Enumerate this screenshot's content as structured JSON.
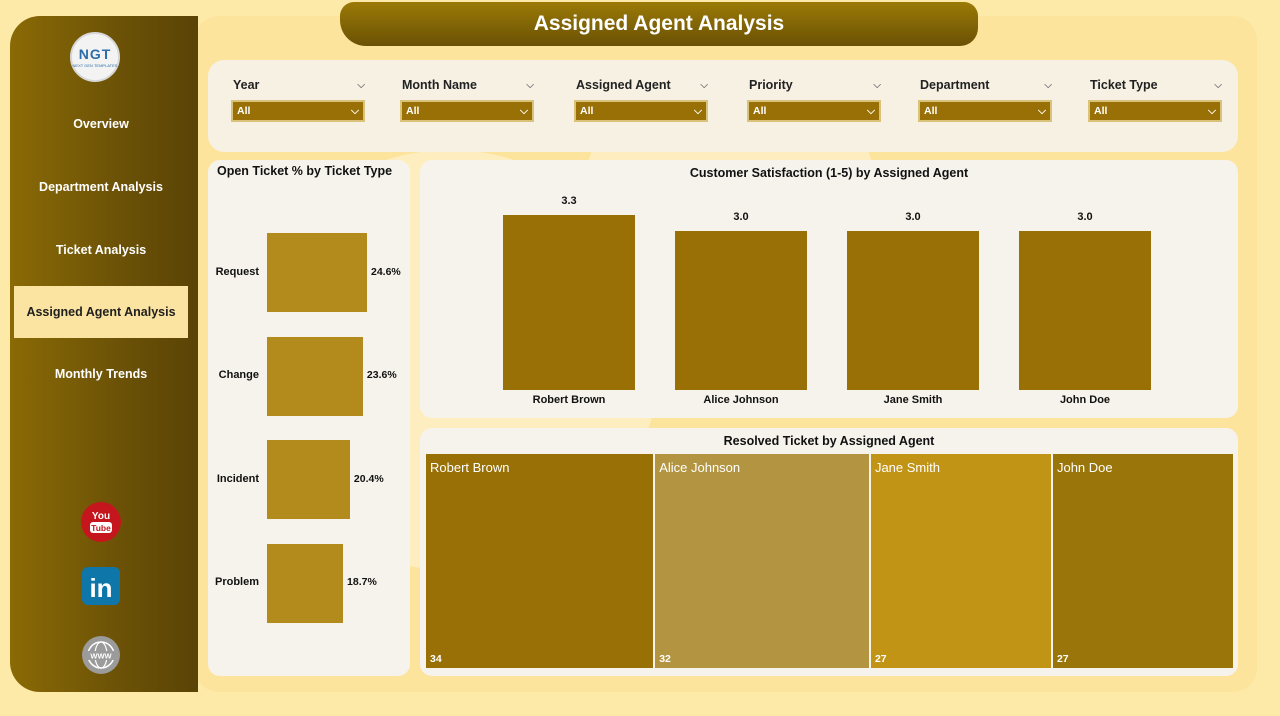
{
  "app": {
    "title": "Assigned Agent Analysis",
    "logo_text": "NGT",
    "logo_sub": "NEXT GEN TEMPLATES"
  },
  "sidebar": {
    "items": [
      {
        "label": "Overview",
        "active": false
      },
      {
        "label": "Department Analysis",
        "active": false
      },
      {
        "label": "Ticket Analysis",
        "active": false
      },
      {
        "label": "Assigned Agent Analysis",
        "active": true
      },
      {
        "label": "Monthly Trends",
        "active": false
      }
    ],
    "social": [
      {
        "icon": "youtube-icon",
        "label_top": "You",
        "label_bottom": "Tube"
      },
      {
        "icon": "linkedin-icon",
        "label": "in"
      },
      {
        "icon": "www-icon",
        "label": "WWW"
      }
    ]
  },
  "filters": [
    {
      "label": "Year",
      "value": "All"
    },
    {
      "label": "Month Name",
      "value": "All"
    },
    {
      "label": "Assigned Agent",
      "value": "All"
    },
    {
      "label": "Priority",
      "value": "All"
    },
    {
      "label": "Department",
      "value": "All"
    },
    {
      "label": "Ticket Type",
      "value": "All"
    }
  ],
  "colors": {
    "bar": "#987006",
    "hbar": "#b38b1d",
    "sidebar": "#6d5307",
    "panel": "#fde49c"
  },
  "chart_data": [
    {
      "type": "bar",
      "orientation": "horizontal",
      "title": "Open Ticket % by Ticket Type",
      "categories": [
        "Request",
        "Change",
        "Incident",
        "Problem"
      ],
      "values": [
        24.6,
        23.6,
        20.4,
        18.7
      ],
      "value_labels": [
        "24.6%",
        "23.6%",
        "20.4%",
        "18.7%"
      ]
    },
    {
      "type": "bar",
      "title": "Customer Satisfaction (1-5) by Assigned Agent",
      "categories": [
        "Robert Brown",
        "Alice Johnson",
        "Jane Smith",
        "John Doe"
      ],
      "values": [
        3.3,
        3.0,
        3.0,
        3.0
      ],
      "value_labels": [
        "3.3",
        "3.0",
        "3.0",
        "3.0"
      ]
    },
    {
      "type": "treemap",
      "title": "Resolved Ticket by Assigned Agent",
      "categories": [
        "Robert Brown",
        "Alice Johnson",
        "Jane Smith",
        "John Doe"
      ],
      "values": [
        34,
        32,
        27,
        27
      ],
      "colors": [
        "#987006",
        "#b39440",
        "#c29416",
        "#9a760a"
      ]
    }
  ]
}
